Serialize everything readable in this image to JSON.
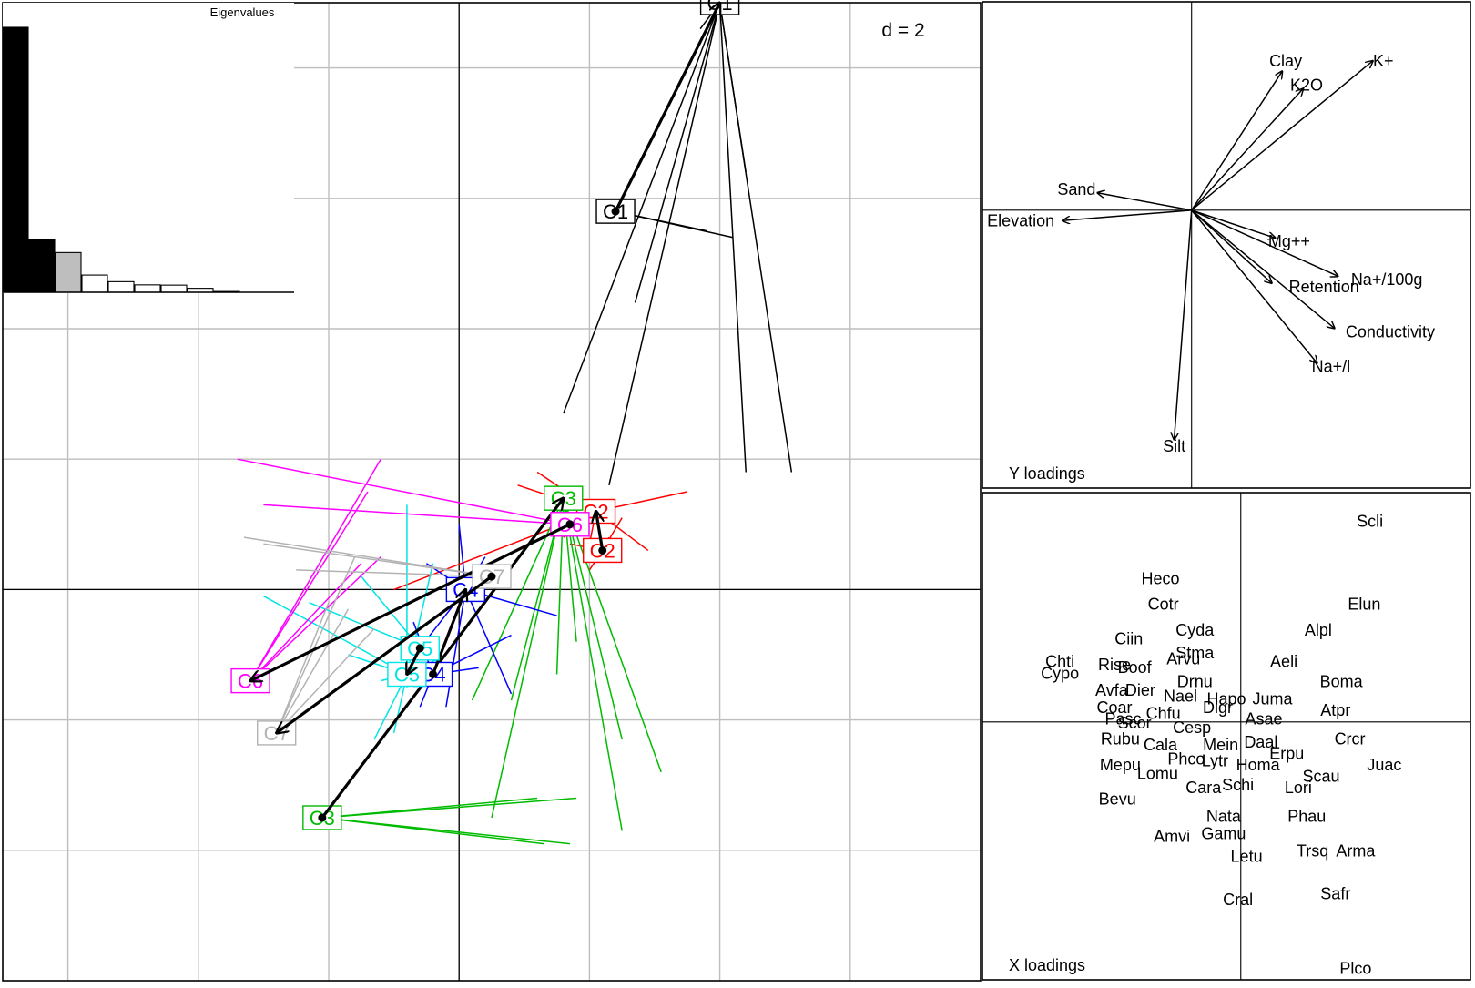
{
  "chart_data": [
    {
      "type": "scatter",
      "panel": "main",
      "title": "",
      "scale_label": "d = 2",
      "grid": true,
      "xlim": [
        -7,
        8
      ],
      "ylim": [
        -6,
        9
      ],
      "gridlines": [
        -6,
        -4,
        -2,
        0,
        2,
        4,
        6,
        8
      ],
      "groups": [
        {
          "label": "C1",
          "color": "#000000",
          "x_centroid": [
            4,
            9
          ],
          "y_centroid": [
            2.4,
            5.8
          ],
          "x_rays": [
            [
              4.4,
              6.4
            ],
            [
              2.7,
              4.4
            ],
            [
              5.1,
              1.8
            ],
            [
              1.6,
              2.7
            ],
            [
              2.3,
              1.6
            ],
            [
              4.4,
              1.8
            ],
            [
              4.0,
              9.6
            ],
            [
              3.7,
              8.6
            ]
          ],
          "y_rays": [
            [
              4.2,
              5.4
            ],
            [
              3.8,
              5.5
            ]
          ]
        },
        {
          "label": "C2",
          "color": "#ff0000",
          "x_centroid": [
            2.1,
            1.2
          ],
          "y_centroid": [
            2.2,
            0.6
          ],
          "x_rays": [
            [
              3.5,
              1.5
            ],
            [
              1.2,
              1.8
            ],
            [
              1.6,
              0.8
            ],
            [
              2.9,
              0.6
            ],
            [
              0.9,
              1.6
            ],
            [
              1.4,
              1.3
            ],
            [
              1.7,
              1.0
            ],
            [
              -1.0,
              0
            ],
            [
              2.0,
              0.7
            ]
          ],
          "y_rays": [
            [
              2.3,
              0.8
            ],
            [
              2.5,
              1.1
            ],
            [
              1.7,
              0.7
            ],
            [
              2.0,
              0.3
            ]
          ]
        },
        {
          "label": "C3",
          "color": "#00bb00",
          "x_centroid": [
            1.6,
            1.4
          ],
          "y_centroid": [
            -2.1,
            -3.5
          ],
          "x_rays": [
            [
              2.5,
              -2.3
            ],
            [
              3.1,
              -2.8
            ],
            [
              1.5,
              -1.3
            ],
            [
              0.8,
              -1.7
            ],
            [
              1.8,
              -0.8
            ],
            [
              0.2,
              -1.7
            ],
            [
              0.5,
              -3.5
            ],
            [
              2.5,
              -3.7
            ]
          ],
          "y_rays": [
            [
              1.2,
              -3.2
            ],
            [
              1.8,
              -3.2
            ],
            [
              1.7,
              -3.9
            ],
            [
              1.3,
              -3.9
            ]
          ]
        },
        {
          "label": "C4",
          "color": "#0000ff",
          "x_centroid": [
            0.1,
            0.0
          ],
          "y_centroid": [
            -0.4,
            -1.3
          ],
          "x_rays": [
            [
              -0.2,
              -1.8
            ],
            [
              0.8,
              -1.6
            ],
            [
              1.5,
              -0.4
            ],
            [
              -0.6,
              -0.9
            ],
            [
              0.0,
              1.0
            ],
            [
              -0.5,
              0.4
            ],
            [
              0.4,
              0.5
            ]
          ],
          "y_rays": [
            [
              -0.6,
              -1.8
            ],
            [
              0.3,
              -1.2
            ],
            [
              0.8,
              -0.7
            ],
            [
              -0.7,
              -0.5
            ]
          ]
        },
        {
          "label": "C5",
          "color": "#00e5e5",
          "x_centroid": [
            -0.8,
            -1.3
          ],
          "y_centroid": [
            -0.6,
            -0.9
          ],
          "x_rays": [
            [
              -3.0,
              -0.1
            ],
            [
              -1.0,
              -2.2
            ],
            [
              -0.8,
              -1.5
            ],
            [
              -1.2,
              -1.4
            ],
            [
              -0.4,
              0.4
            ],
            [
              -0.8,
              1.3
            ],
            [
              -1.7,
              -1.0
            ],
            [
              -0.2,
              -1.0
            ]
          ],
          "y_rays": [
            [
              -1.3,
              -2.3
            ],
            [
              -0.1,
              -1.3
            ],
            [
              -2.3,
              -0.2
            ],
            [
              -1.5,
              0.2
            ]
          ]
        },
        {
          "label": "C6",
          "color": "#ff00ff",
          "x_centroid": [
            -3.2,
            -1.4
          ],
          "y_centroid": [
            1.7,
            1.0
          ],
          "x_rays": [
            [
              -1.2,
              2.0
            ],
            [
              -1.5,
              0.4
            ],
            [
              -1.2,
              0.5
            ],
            [
              -1.4,
              1.5
            ]
          ],
          "y_rays": [
            [
              -3.4,
              2.0
            ],
            [
              -3.0,
              1.3
            ]
          ]
        },
        {
          "label": "C7",
          "color": "#b3b3b3",
          "x_centroid": [
            -2.8,
            -2.2
          ],
          "y_centroid": [
            0.5,
            0.2
          ],
          "x_rays": [
            [
              -1.7,
              -0.3
            ],
            [
              -1.6,
              0.5
            ],
            [
              -2.0,
              -0.2
            ],
            [
              -1.3,
              -0.6
            ]
          ],
          "y_rays": [
            [
              -3.3,
              0.8
            ],
            [
              -3.0,
              0.7
            ],
            [
              -2.5,
              0.3
            ]
          ]
        }
      ]
    },
    {
      "type": "bar",
      "panel": "inset",
      "title": "Eigenvalues",
      "values": [
        1.0,
        0.2,
        0.15,
        0.065,
        0.04,
        0.028,
        0.027,
        0.015,
        0.003,
        0.0,
        0.0
      ],
      "highlight": {
        "black": [
          0,
          1
        ],
        "grey": [
          2
        ]
      },
      "ylim": [
        0,
        1.0
      ]
    },
    {
      "type": "scatter",
      "panel": "top-right",
      "title": "Y loadings",
      "grid": true,
      "xlim": [
        -0.6,
        0.8
      ],
      "ylim": [
        -0.8,
        0.6
      ],
      "arrows": [
        {
          "label": "Clay",
          "x": 0.26,
          "y": 0.4
        },
        {
          "label": "K2O",
          "x": 0.32,
          "y": 0.35
        },
        {
          "label": "K+",
          "x": 0.52,
          "y": 0.43
        },
        {
          "label": "Sand",
          "x": -0.27,
          "y": 0.05
        },
        {
          "label": "Elevation",
          "x": -0.37,
          "y": -0.03
        },
        {
          "label": "Mg++",
          "x": 0.24,
          "y": -0.08
        },
        {
          "label": "Na+/100g",
          "x": 0.42,
          "y": -0.19
        },
        {
          "label": "Retention",
          "x": 0.23,
          "y": -0.21
        },
        {
          "label": "Conductivity",
          "x": 0.41,
          "y": -0.34
        },
        {
          "label": "Na+/l",
          "x": 0.36,
          "y": -0.44
        },
        {
          "label": "Silt",
          "x": -0.05,
          "y": -0.66
        }
      ],
      "labels": [
        {
          "label": "Clay",
          "x": 0.27,
          "y": 0.43
        },
        {
          "label": "K2O",
          "x": 0.33,
          "y": 0.36
        },
        {
          "label": "K+",
          "x": 0.55,
          "y": 0.43
        },
        {
          "label": "Sand",
          "x": -0.33,
          "y": 0.06
        },
        {
          "label": "Elevation",
          "x": -0.49,
          "y": -0.03
        },
        {
          "label": "Mg++",
          "x": 0.28,
          "y": -0.09
        },
        {
          "label": "Na+/100g",
          "x": 0.56,
          "y": -0.2
        },
        {
          "label": "Retention",
          "x": 0.38,
          "y": -0.22
        },
        {
          "label": "Conductivity",
          "x": 0.57,
          "y": -0.35
        },
        {
          "label": "Na+/l",
          "x": 0.4,
          "y": -0.45
        },
        {
          "label": "Silt",
          "x": -0.05,
          "y": -0.68
        }
      ]
    },
    {
      "type": "scatter",
      "panel": "bottom-right",
      "title": "X loadings",
      "grid": true,
      "xlim": [
        -0.45,
        0.4
      ],
      "ylim": [
        -0.45,
        0.4
      ],
      "points": [
        {
          "label": "Scli",
          "x": 0.225,
          "y": 0.35
        },
        {
          "label": "Heco",
          "x": -0.14,
          "y": 0.25
        },
        {
          "label": "Elun",
          "x": 0.215,
          "y": 0.205
        },
        {
          "label": "Cotr",
          "x": -0.135,
          "y": 0.205
        },
        {
          "label": "Alpl",
          "x": 0.135,
          "y": 0.16
        },
        {
          "label": "Cyda",
          "x": -0.08,
          "y": 0.16
        },
        {
          "label": "Ciin",
          "x": -0.195,
          "y": 0.145
        },
        {
          "label": "Stma",
          "x": -0.08,
          "y": 0.12
        },
        {
          "label": "Arvu",
          "x": -0.1,
          "y": 0.11
        },
        {
          "label": "Chti",
          "x": -0.315,
          "y": 0.105
        },
        {
          "label": "Rise",
          "x": -0.22,
          "y": 0.1
        },
        {
          "label": "Boof",
          "x": -0.185,
          "y": 0.095
        },
        {
          "label": "Aeli",
          "x": 0.075,
          "y": 0.105
        },
        {
          "label": "Cypo",
          "x": -0.315,
          "y": 0.085
        },
        {
          "label": "Drnu",
          "x": -0.08,
          "y": 0.07
        },
        {
          "label": "Boma",
          "x": 0.175,
          "y": 0.07
        },
        {
          "label": "Avfa",
          "x": -0.225,
          "y": 0.055
        },
        {
          "label": "Dier",
          "x": -0.175,
          "y": 0.055
        },
        {
          "label": "Nael",
          "x": -0.105,
          "y": 0.045
        },
        {
          "label": "Hapo",
          "x": -0.025,
          "y": 0.04
        },
        {
          "label": "Juma",
          "x": 0.055,
          "y": 0.04
        },
        {
          "label": "Coar",
          "x": -0.22,
          "y": 0.025
        },
        {
          "label": "Digr",
          "x": -0.04,
          "y": 0.025
        },
        {
          "label": "Atpr",
          "x": 0.165,
          "y": 0.02
        },
        {
          "label": "Chfu",
          "x": -0.135,
          "y": 0.015
        },
        {
          "label": "Asae",
          "x": 0.04,
          "y": 0.005
        },
        {
          "label": "Pasc",
          "x": -0.205,
          "y": 0.005
        },
        {
          "label": "Scor",
          "x": -0.185,
          "y": -0.002
        },
        {
          "label": "Cesp",
          "x": -0.085,
          "y": -0.01
        },
        {
          "label": "Rubu",
          "x": -0.21,
          "y": -0.03
        },
        {
          "label": "Crcr",
          "x": 0.19,
          "y": -0.03
        },
        {
          "label": "Daal",
          "x": 0.035,
          "y": -0.035
        },
        {
          "label": "Cala",
          "x": -0.14,
          "y": -0.04
        },
        {
          "label": "Mein",
          "x": -0.035,
          "y": -0.04
        },
        {
          "label": "Erpu",
          "x": 0.08,
          "y": -0.055
        },
        {
          "label": "Phco",
          "x": -0.095,
          "y": -0.065
        },
        {
          "label": "Lytr",
          "x": -0.045,
          "y": -0.068
        },
        {
          "label": "Homa",
          "x": 0.03,
          "y": -0.075
        },
        {
          "label": "Mepu",
          "x": -0.21,
          "y": -0.075
        },
        {
          "label": "Juac",
          "x": 0.25,
          "y": -0.075
        },
        {
          "label": "Lomu",
          "x": -0.145,
          "y": -0.09
        },
        {
          "label": "Scau",
          "x": 0.14,
          "y": -0.095
        },
        {
          "label": "Schi",
          "x": -0.005,
          "y": -0.11
        },
        {
          "label": "Cara",
          "x": -0.065,
          "y": -0.115
        },
        {
          "label": "Lori",
          "x": 0.1,
          "y": -0.115
        },
        {
          "label": "Bevu",
          "x": -0.215,
          "y": -0.135
        },
        {
          "label": "Nata",
          "x": -0.03,
          "y": -0.165
        },
        {
          "label": "Phau",
          "x": 0.115,
          "y": -0.165
        },
        {
          "label": "Gamu",
          "x": -0.03,
          "y": -0.195
        },
        {
          "label": "Amvi",
          "x": -0.12,
          "y": -0.2
        },
        {
          "label": "Trsq",
          "x": 0.125,
          "y": -0.225
        },
        {
          "label": "Arma",
          "x": 0.2,
          "y": -0.225
        },
        {
          "label": "Letu",
          "x": 0.01,
          "y": -0.235
        },
        {
          "label": "Cral",
          "x": -0.005,
          "y": -0.31
        },
        {
          "label": "Safr",
          "x": 0.165,
          "y": -0.3
        },
        {
          "label": "Plco",
          "x": 0.2,
          "y": -0.43
        }
      ]
    }
  ]
}
